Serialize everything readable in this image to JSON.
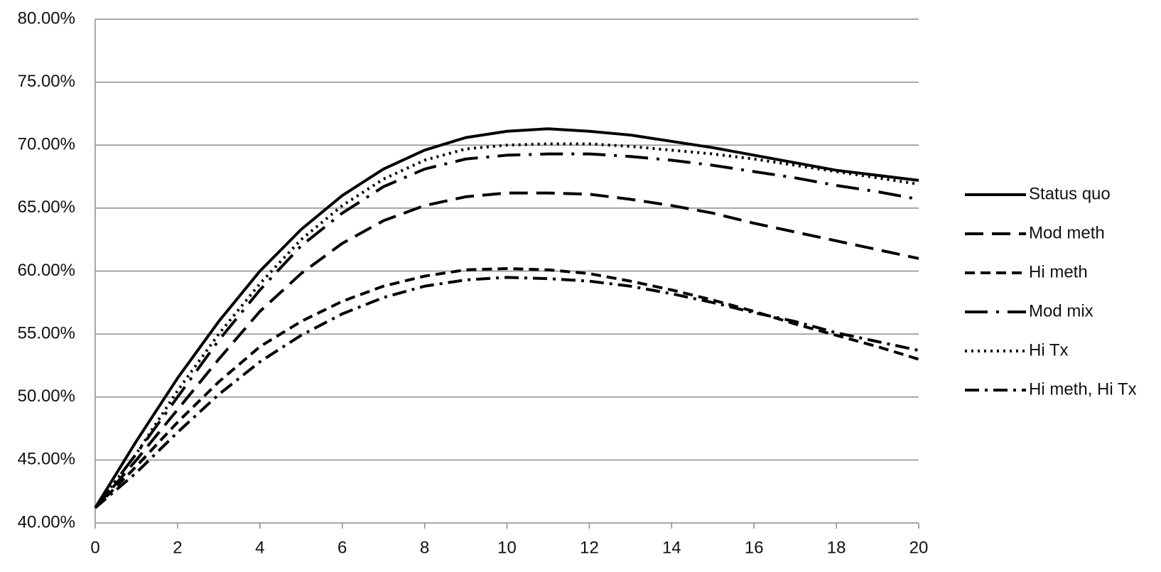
{
  "chart_data": {
    "type": "line",
    "x": [
      0,
      1,
      2,
      3,
      4,
      5,
      6,
      7,
      8,
      9,
      10,
      11,
      12,
      13,
      14,
      15,
      16,
      17,
      18,
      19,
      20
    ],
    "series": [
      {
        "name": "Status quo",
        "color": "#000000",
        "values": [
          41.2,
          46.5,
          51.5,
          56,
          60,
          63.3,
          66,
          68.1,
          69.6,
          70.6,
          71.1,
          71.3,
          71.1,
          70.8,
          70.3,
          69.8,
          69.2,
          68.6,
          68.0,
          67.6,
          67.2
        ]
      },
      {
        "name": "Mod meth",
        "color": "#000000",
        "values": [
          41.2,
          45,
          49,
          53,
          56.8,
          59.8,
          62.2,
          64,
          65.2,
          65.9,
          66.2,
          66.2,
          66.1,
          65.7,
          65.2,
          64.6,
          63.8,
          63.1,
          62.4,
          61.7,
          61.0
        ]
      },
      {
        "name": "Hi meth",
        "color": "#000000",
        "values": [
          41.2,
          44.5,
          48,
          51.2,
          54,
          56,
          57.6,
          58.8,
          59.6,
          60.1,
          60.2,
          60.1,
          59.8,
          59.2,
          58.5,
          57.7,
          56.8,
          55.8,
          54.9,
          54,
          53.0
        ]
      },
      {
        "name": "Mod mix",
        "color": "#000000",
        "values": [
          41.2,
          45.5,
          50,
          54.5,
          58.5,
          62,
          64.6,
          66.7,
          68.1,
          68.9,
          69.2,
          69.3,
          69.3,
          69.1,
          68.8,
          68.4,
          67.9,
          67.4,
          66.8,
          66.3,
          65.7
        ]
      },
      {
        "name": "Hi Tx",
        "color": "#000000",
        "values": [
          41.2,
          45.5,
          50.5,
          55,
          59,
          62.5,
          65.2,
          67.3,
          68.8,
          69.7,
          70.0,
          70.1,
          70.1,
          69.9,
          69.6,
          69.3,
          68.9,
          68.4,
          67.9,
          67.4,
          66.9
        ]
      },
      {
        "name": "Hi meth, Hi Tx",
        "color": "#000000",
        "values": [
          41.2,
          44,
          47.2,
          50.2,
          52.8,
          54.9,
          56.6,
          57.9,
          58.8,
          59.3,
          59.5,
          59.4,
          59.2,
          58.8,
          58.2,
          57.5,
          56.7,
          56,
          55.1,
          54.4,
          53.7
        ]
      }
    ],
    "xlim": [
      0,
      20
    ],
    "xticks": [
      0,
      2,
      4,
      6,
      8,
      10,
      12,
      14,
      16,
      18,
      20
    ],
    "ylim": [
      40,
      80
    ],
    "yticks": [
      {
        "value": 40,
        "label": "40.00%"
      },
      {
        "value": 45,
        "label": "45.00%"
      },
      {
        "value": 50,
        "label": "50.00%"
      },
      {
        "value": 55,
        "label": "55.00%"
      },
      {
        "value": 60,
        "label": "60.00%"
      },
      {
        "value": 65,
        "label": "65.00%"
      },
      {
        "value": 70,
        "label": "70.00%"
      },
      {
        "value": 75,
        "label": "75.00%"
      },
      {
        "value": 80,
        "label": "80.00%"
      }
    ],
    "grid": true,
    "legend": "right"
  }
}
